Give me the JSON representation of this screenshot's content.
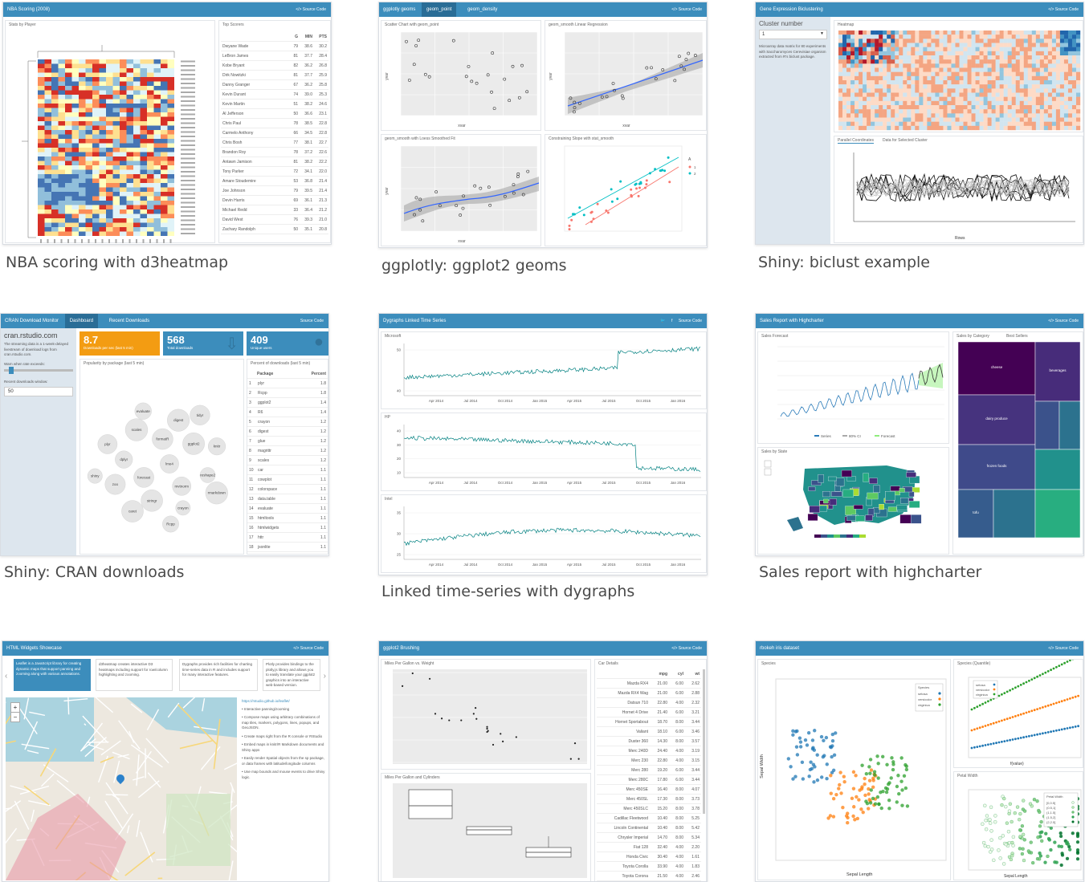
{
  "tiles": [
    {
      "caption": "NBA scoring with d3heatmap",
      "title": "NBA Scoring (2008)",
      "source": "</> Source Code",
      "left_label": "Stats by Player",
      "right_label": "Top Scorers",
      "table_headers": [
        "G",
        "MIN",
        "PTS"
      ],
      "table_rows": [
        [
          "Dwyane Wade",
          "79",
          "38.6",
          "30.2"
        ],
        [
          "LeBron James",
          "81",
          "37.7",
          "28.4"
        ],
        [
          "Kobe Bryant",
          "82",
          "36.2",
          "26.8"
        ],
        [
          "Dirk Nowitzki",
          "81",
          "37.7",
          "25.9"
        ],
        [
          "Danny Granger",
          "67",
          "36.2",
          "25.8"
        ],
        [
          "Kevin Durant",
          "74",
          "39.0",
          "25.3"
        ],
        [
          "Kevin Martin",
          "51",
          "38.2",
          "24.6"
        ],
        [
          "Al Jefferson",
          "50",
          "36.6",
          "23.1"
        ],
        [
          "Chris Paul",
          "78",
          "38.5",
          "22.8"
        ],
        [
          "Carmelo Anthony",
          "66",
          "34.5",
          "22.8"
        ],
        [
          "Chris Bosh",
          "77",
          "38.1",
          "22.7"
        ],
        [
          "Brandon Roy",
          "78",
          "37.2",
          "22.6"
        ],
        [
          "Antawn Jamison",
          "81",
          "38.2",
          "22.2"
        ],
        [
          "Tony Parker",
          "72",
          "34.1",
          "22.0"
        ],
        [
          "Amare Stoudemire",
          "53",
          "36.8",
          "21.4"
        ],
        [
          "Joe Johnson",
          "79",
          "39.5",
          "21.4"
        ],
        [
          "Devin Harris",
          "69",
          "36.1",
          "21.3"
        ],
        [
          "Michael Redd",
          "33",
          "36.4",
          "21.2"
        ],
        [
          "David West",
          "76",
          "39.3",
          "21.0"
        ],
        [
          "Zachary Randolph",
          "50",
          "35.1",
          "20.8"
        ]
      ]
    },
    {
      "caption": "ggplotly: ggplot2 geoms",
      "title": "ggplotly geoms",
      "tabs": [
        "geom_point",
        "geom_density"
      ],
      "source": "</> Source Code",
      "panels": [
        "Scatter Chart with geom_point",
        "geom_smooth Linear Regression",
        "geom_smooth with Loess Smoothed Fit",
        "Constraining Slope with stat_smooth"
      ],
      "xlabel": "xvar",
      "ylabel": "yvar"
    },
    {
      "caption": "Shiny: biclust example",
      "title": "Gene Expression Biclustering",
      "source": "</> Source Code",
      "sidebar_heading": "Cluster number",
      "select_value": "1",
      "sidebar_text": "Microarray data matrix for 80 experiments with Saccharomyces Cerevisiae organism extracted from R's biclust package.",
      "heatmap_label": "Heatmap",
      "tabs": [
        "Parallel Coordinates",
        "Data for Selected Cluster"
      ],
      "xaxis_label": "Rows"
    },
    {
      "caption": "Shiny: CRAN downloads",
      "title": "CRAN Download Monitor",
      "tabs": [
        "Dashboard",
        "Recent Downloads"
      ],
      "source": "Source Code",
      "site": "cran.rstudio.com",
      "sidebar_text": "The streaming data is a 1-week-delayed livestream of download logs from cran.rstudio.com.",
      "warn_label": "Warn when rate exceeds:",
      "window_label": "Recent downloads window:",
      "window_value": "50",
      "boxes": [
        {
          "value": "8.7",
          "label": "Downloads per sec (last 5 min)"
        },
        {
          "value": "568",
          "label": "Total downloads"
        },
        {
          "value": "409",
          "label": "Unique users"
        }
      ],
      "bubble_label": "Popularity by package (last 5 min)",
      "table_label": "Percent of downloads (last 5 min)",
      "table_headers": [
        "Package",
        "Percent"
      ],
      "packages": [
        [
          "1",
          "plyr",
          "1.8"
        ],
        [
          "2",
          "Rcpp",
          "1.8"
        ],
        [
          "3",
          "ggplot2",
          "1.4"
        ],
        [
          "4",
          "R6",
          "1.4"
        ],
        [
          "5",
          "crayon",
          "1.2"
        ],
        [
          "6",
          "digest",
          "1.2"
        ],
        [
          "7",
          "glue",
          "1.2"
        ],
        [
          "8",
          "magrittr",
          "1.2"
        ],
        [
          "9",
          "scales",
          "1.2"
        ],
        [
          "10",
          "car",
          "1.1"
        ],
        [
          "11",
          "cowplot",
          "1.1"
        ],
        [
          "12",
          "colorspace",
          "1.1"
        ],
        [
          "13",
          "data.table",
          "1.1"
        ],
        [
          "14",
          "evaluate",
          "1.1"
        ],
        [
          "15",
          "htmltools",
          "1.1"
        ],
        [
          "16",
          "htmlwidgets",
          "1.1"
        ],
        [
          "17",
          "httr",
          "1.1"
        ],
        [
          "18",
          "jsonlite",
          "1.1"
        ]
      ],
      "bubbles": [
        "lme4",
        "forecast",
        "formatR",
        "mvtnorm",
        "dplyr",
        "ggplot2",
        "stringr",
        "scales",
        "reshape2",
        "zoo",
        "digest",
        "crayon",
        "plyr",
        "knitr",
        "caret",
        "evaluate",
        "rmarkdown",
        "shiny",
        "tidyr",
        "Rcpp"
      ]
    },
    {
      "caption": "Linked time-series with dygraphs",
      "title": "Dygraphs Linked Time Series",
      "source": "Source Code",
      "panels": [
        "Microsoft",
        "HP",
        "Intel"
      ],
      "xticks": [
        "Apr 2014",
        "Jul 2014",
        "Oct 2014",
        "Jan 2015",
        "Apr 2015",
        "Jul 2015",
        "Oct 2015",
        "Jan 2016"
      ],
      "yticks": [
        [
          "50",
          "40"
        ],
        [
          "40",
          "30",
          "20",
          "10"
        ],
        [
          "35",
          "30",
          "25"
        ]
      ]
    },
    {
      "caption": "Sales report with highcharter",
      "title": "Sales Report with Highcharter",
      "source": "</> Source Code",
      "forecast_label": "Sales Forecast",
      "state_label": "Sales by State",
      "tabs": [
        "Sales by Category",
        "Best Sellers"
      ],
      "legend": [
        "Series",
        "80% CI",
        "Forecast"
      ],
      "treemap": [
        "cheese",
        "dairy produce",
        "frozen foods",
        "beverages",
        "tofu"
      ]
    },
    {
      "caption": "",
      "title": "HTML Widgets Showcase",
      "source": "</> Source Code",
      "cards": [
        "Leaflet is a JavaScript library for creating dynamic maps that support panning and zooming along with various annotations.",
        "d3heatmap creates interactive D3 heatmaps including support for row/column highlighting and zooming.",
        "Dygraphs provides rich facilities for charting time-series data in R and includes support for many interactive features.",
        "Plotly provides bindings to the plotly.js library and allows you to easily translate your ggplot2 graphics into an interactive web-based version."
      ],
      "link": "https://rstudio.github.io/leaflet/",
      "bullets": [
        "Interactive panning/zooming",
        "Compose maps using arbitrary combinations of map tiles, markers, polygons, lines, popups, and GeoJSON.",
        "Create maps right from the R console or RStudio",
        "Embed maps in knitr/R Markdown documents and Shiny apps",
        "Easily render Spatial objects from the sp package, or data frames with latitude/longitude columns",
        "Use map bounds and mouse events to drive Shiny logic."
      ]
    },
    {
      "caption": "",
      "title": "ggplot2 Brushing",
      "source": "</> Source Code",
      "panel1": "Miles Per Gallon vs. Weight",
      "panel2": "Miles Per Gallon and Cylinders",
      "table_label": "Car Details",
      "table_headers": [
        "mpg",
        "cyl",
        "wt"
      ],
      "cars": [
        [
          "Mazda RX4",
          "21.00",
          "6.00",
          "2.62"
        ],
        [
          "Mazda RX4 Wag",
          "21.00",
          "6.00",
          "2.88"
        ],
        [
          "Datsun 710",
          "22.80",
          "4.00",
          "2.32"
        ],
        [
          "Hornet 4 Drive",
          "21.40",
          "6.00",
          "3.21"
        ],
        [
          "Hornet Sportabout",
          "18.70",
          "8.00",
          "3.44"
        ],
        [
          "Valiant",
          "18.10",
          "6.00",
          "3.46"
        ],
        [
          "Duster 360",
          "14.30",
          "8.00",
          "3.57"
        ],
        [
          "Merc 240D",
          "24.40",
          "4.00",
          "3.19"
        ],
        [
          "Merc 230",
          "22.80",
          "4.00",
          "3.15"
        ],
        [
          "Merc 280",
          "19.20",
          "6.00",
          "3.44"
        ],
        [
          "Merc 280C",
          "17.80",
          "6.00",
          "3.44"
        ],
        [
          "Merc 450SE",
          "16.40",
          "8.00",
          "4.07"
        ],
        [
          "Merc 450SL",
          "17.30",
          "8.00",
          "3.73"
        ],
        [
          "Merc 450SLC",
          "15.20",
          "8.00",
          "3.78"
        ],
        [
          "Cadillac Fleetwood",
          "10.40",
          "8.00",
          "5.25"
        ],
        [
          "Lincoln Continental",
          "10.40",
          "8.00",
          "5.42"
        ],
        [
          "Chrysler Imperial",
          "14.70",
          "8.00",
          "5.34"
        ],
        [
          "Fiat 128",
          "32.40",
          "4.00",
          "2.20"
        ],
        [
          "Honda Civic",
          "30.40",
          "4.00",
          "1.61"
        ],
        [
          "Toyota Corolla",
          "33.90",
          "4.00",
          "1.83"
        ],
        [
          "Toyota Corona",
          "21.50",
          "4.00",
          "2.46"
        ]
      ]
    },
    {
      "caption": "",
      "title": "rbokeh iris dataset",
      "source": "</> Source Code",
      "panel1": "Species",
      "panel2": "Species (Quantile)",
      "panel3": "Petal Width",
      "xlabel": "Sepal Length",
      "ylabel": "Sepal Width",
      "legend": [
        "setosa",
        "versicolor",
        "virginica"
      ],
      "legend_title": "Species",
      "xlabel2": "f(value)",
      "legend3_title": "Petal.Width",
      "legend3": [
        "[0,0.5]",
        "(0.5,1]",
        "(1,1.5]",
        "(1.5,2]",
        "(2,2.5]"
      ]
    }
  ],
  "colors": {
    "topbar": "#3c8dbc",
    "setosa": "#1f77b4",
    "versicolor": "#ff7f0e",
    "virginica": "#2ca02c",
    "dygraph": "#008080"
  }
}
